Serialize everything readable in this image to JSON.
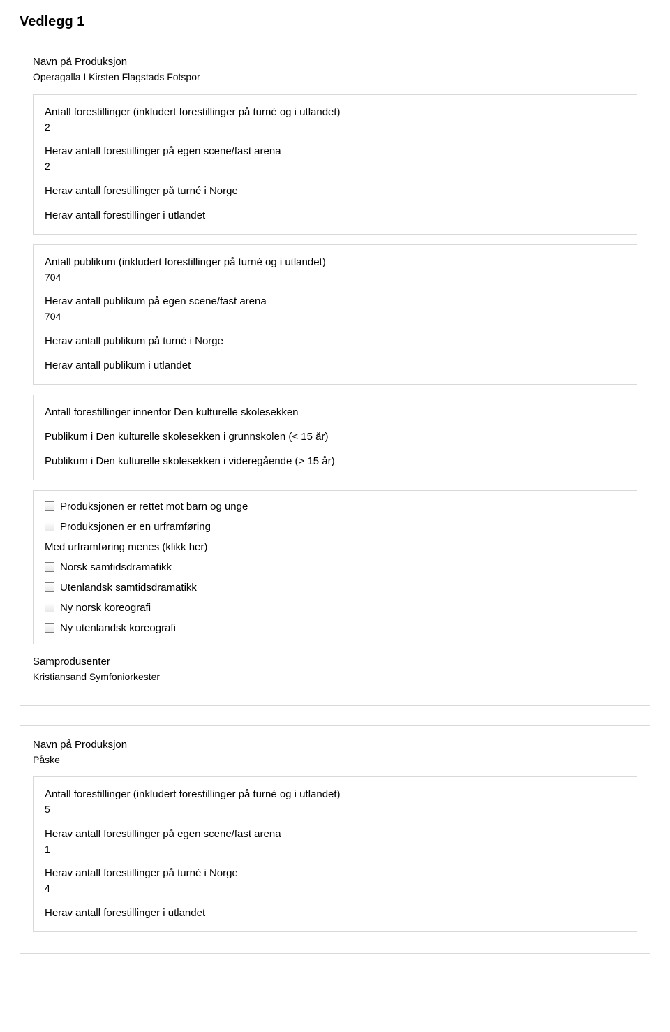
{
  "page": {
    "title": "Vedlegg 1"
  },
  "colors": {
    "border": "#d9d9d9",
    "text": "#000000",
    "background": "#ffffff"
  },
  "productions": [
    {
      "name_label": "Navn på Produksjon",
      "name_value": "Operagalla I Kirsten Flagstads Fotspor",
      "forestillinger": {
        "total_label": "Antall forestillinger (inkludert forestillinger på turné og i utlandet)",
        "total_value": "2",
        "egen_scene_label": "Herav antall forestillinger på egen scene/fast arena",
        "egen_scene_value": "2",
        "turne_norge_label": "Herav antall forestillinger på turné i Norge",
        "turne_norge_value": "",
        "utlandet_label": "Herav antall forestillinger i utlandet",
        "utlandet_value": ""
      },
      "publikum": {
        "total_label": "Antall publikum (inkludert forestillinger på turné og i utlandet)",
        "total_value": "704",
        "egen_scene_label": "Herav antall publikum på egen scene/fast arena",
        "egen_scene_value": "704",
        "turne_norge_label": "Herav antall publikum på turné i Norge",
        "turne_norge_value": "",
        "utlandet_label": "Herav antall publikum i utlandet",
        "utlandet_value": ""
      },
      "skolesekken": {
        "innenfor_label": "Antall forestillinger innenfor Den kulturelle skolesekken",
        "grunnskolen_label": "Publikum i Den kulturelle skolesekken i grunnskolen (< 15 år)",
        "videregaende_label": "Publikum i Den kulturelle skolesekken i videregående (> 15 år)"
      },
      "checks": {
        "barn_unge": "Produksjonen er rettet mot barn og unge",
        "urframforing": "Produksjonen er en urframføring",
        "urframforing_hint": "Med urframføring menes (klikk her)",
        "norsk_samtid": "Norsk samtidsdramatikk",
        "utenlandsk_samtid": "Utenlandsk samtidsdramatikk",
        "ny_norsk_koreografi": "Ny norsk koreografi",
        "ny_utenlandsk_koreografi": "Ny utenlandsk koreografi"
      },
      "samprodusenter": {
        "label": "Samprodusenter",
        "value": "Kristiansand Symfoniorkester"
      }
    },
    {
      "name_label": "Navn på Produksjon",
      "name_value": "Påske",
      "forestillinger": {
        "total_label": "Antall forestillinger (inkludert forestillinger på turné og i utlandet)",
        "total_value": "5",
        "egen_scene_label": "Herav antall forestillinger på egen scene/fast arena",
        "egen_scene_value": "1",
        "turne_norge_label": "Herav antall forestillinger på turné i Norge",
        "turne_norge_value": "4",
        "utlandet_label": "Herav antall forestillinger i utlandet",
        "utlandet_value": ""
      }
    }
  ]
}
